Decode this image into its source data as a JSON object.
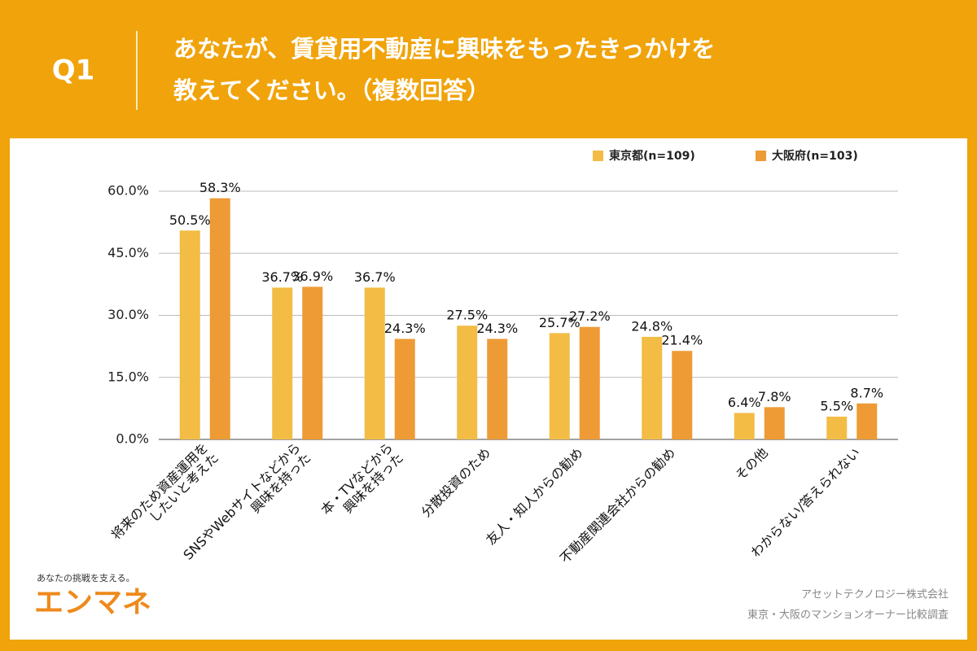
{
  "header": {
    "q": "Q1",
    "title_lines": [
      "あなたが、賃貸用不動産に興味をもったきっかけを",
      "教えてください。（複数回答）"
    ]
  },
  "chart_data": {
    "type": "bar",
    "categories": [
      [
        "将来のため資産運用を",
        "したいと考えた"
      ],
      [
        "SNSやWebサイトなどから",
        "興味を持った"
      ],
      [
        "本・TVなどから",
        "興味を持った"
      ],
      [
        "分散投資のため"
      ],
      [
        "友人・知人からの勧め"
      ],
      [
        "不動産関連会社からの勧め"
      ],
      [
        "その他"
      ],
      [
        "わからない/答えられない"
      ]
    ],
    "series": [
      {
        "name": "東京都(n=109)",
        "color": "#f2bc45",
        "values": [
          50.5,
          36.7,
          36.7,
          27.5,
          25.7,
          24.8,
          6.4,
          5.5
        ],
        "value_labels": [
          "50.5%",
          "36.7%",
          "36.7%",
          "27.5%",
          "25.7%",
          "24.8%",
          "6.4%",
          "5.5%"
        ]
      },
      {
        "name": "大阪府(n=103)",
        "color": "#ee9a35",
        "values": [
          58.3,
          36.9,
          24.3,
          24.3,
          27.2,
          21.4,
          7.8,
          8.7
        ],
        "value_labels": [
          "58.3%",
          "36.9%",
          "24.3%",
          "24.3%",
          "27.2%",
          "21.4%",
          "7.8%",
          "8.7%"
        ]
      }
    ],
    "ylim": [
      0,
      60
    ],
    "yticks": [
      {
        "value": 0,
        "label": "0.0%"
      },
      {
        "value": 15,
        "label": "15.0%"
      },
      {
        "value": 30,
        "label": "30.0%"
      },
      {
        "value": 45,
        "label": "45.0%"
      },
      {
        "value": 60,
        "label": "60.0%"
      }
    ],
    "grid": true,
    "legend": "top-right"
  },
  "brand": {
    "tagline": "あなたの挑戦を支える。",
    "logo": "エンマネ"
  },
  "footer": {
    "company": "アセットテクノロジー株式会社",
    "survey": "東京・大阪のマンションオーナー比較調査"
  }
}
